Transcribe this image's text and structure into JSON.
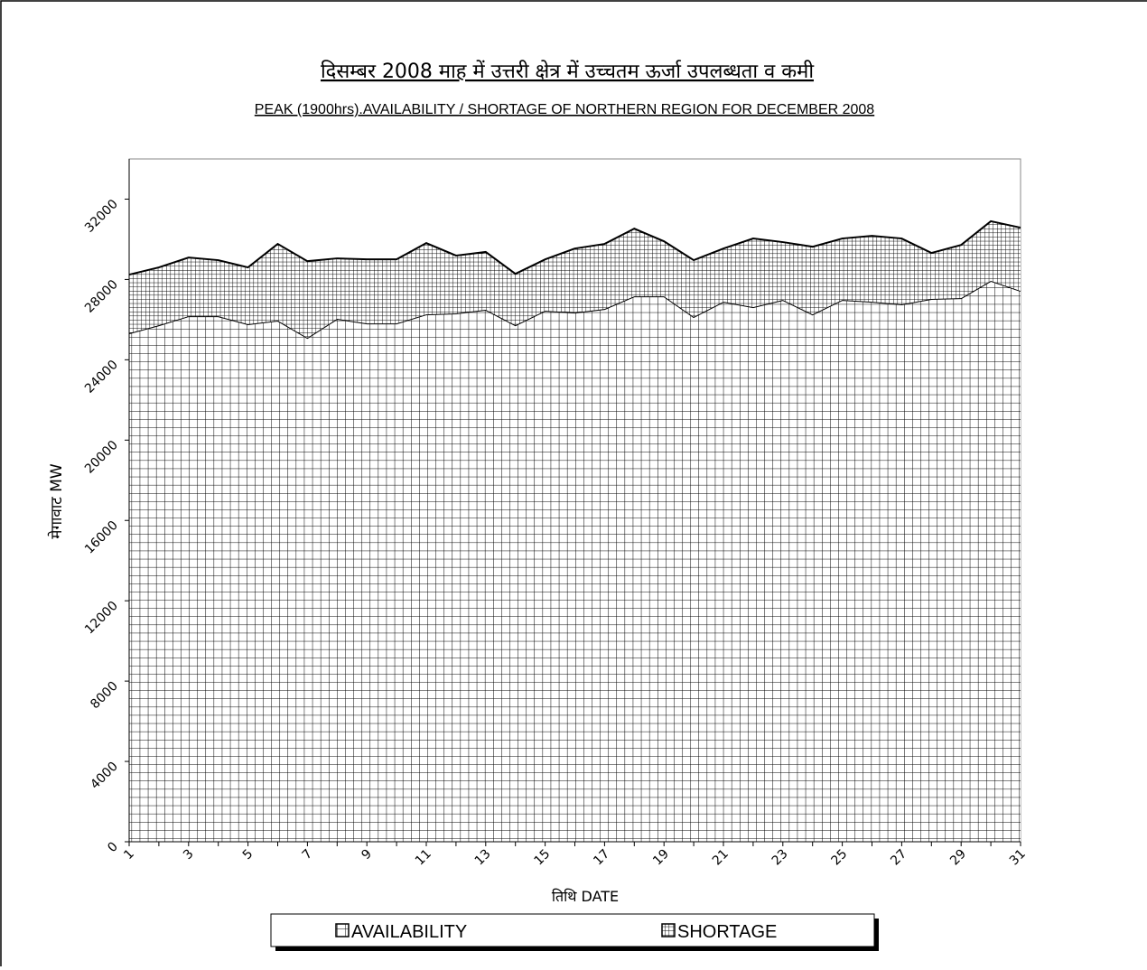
{
  "chart_data": {
    "type": "stacked-area",
    "title": "दिसम्बर 2008 माह में उत्तरी क्षेत्र में उच्चतम ऊर्जा उपलब्धता व कमी",
    "subtitle": "PEAK (1900hrs).AVAILABILITY / SHORTAGE  OF NORTHERN REGION FOR DECEMBER 2008",
    "y_label": "मेगावाट MW",
    "x_label": "तिथि DATE",
    "x": [
      1,
      2,
      3,
      4,
      5,
      6,
      7,
      8,
      9,
      10,
      11,
      12,
      13,
      14,
      15,
      16,
      17,
      18,
      19,
      20,
      21,
      22,
      23,
      24,
      25,
      26,
      27,
      28,
      29,
      30,
      31
    ],
    "xlim": [
      1,
      31
    ],
    "xticks": [
      1,
      3,
      5,
      7,
      9,
      11,
      13,
      15,
      17,
      19,
      21,
      23,
      25,
      27,
      29,
      31
    ],
    "ylim": [
      0,
      34000
    ],
    "yticks": [
      0,
      4000,
      8000,
      12000,
      16000,
      20000,
      24000,
      28000,
      32000
    ],
    "legend": "bottom",
    "series": [
      {
        "name": "AVAILABILITY",
        "color": "#000000",
        "values": [
          25320,
          25720,
          26170,
          26170,
          25770,
          25950,
          25090,
          26040,
          25810,
          25810,
          26260,
          26310,
          26490,
          25720,
          26440,
          26350,
          26530,
          27160,
          27160,
          26130,
          26890,
          26620,
          26980,
          26260,
          26980,
          26890,
          26760,
          27030,
          27070,
          27930,
          27430
        ]
      },
      {
        "name": "SHORTAGE",
        "color": "#000000",
        "values": [
          2920,
          2880,
          2920,
          2790,
          2830,
          3820,
          3820,
          3010,
          3190,
          3190,
          3550,
          2880,
          2880,
          2560,
          2560,
          3190,
          3240,
          3370,
          2740,
          2830,
          2650,
          3420,
          2880,
          3370,
          3060,
          3280,
          3280,
          2290,
          2650,
          2970,
          3150
        ]
      }
    ]
  }
}
